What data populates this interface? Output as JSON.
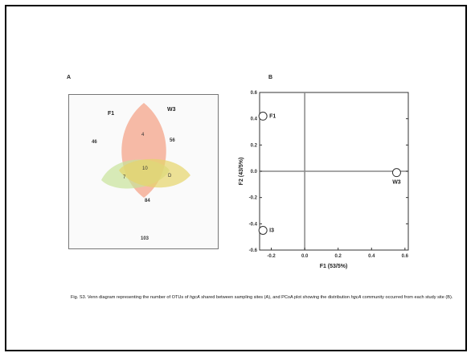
{
  "figure": {
    "panel_a_label": "A",
    "panel_b_label": "B",
    "caption": {
      "part1": "Fig. S3. Venn diagram representing the number of OTUs of ",
      "gene1": "hgcA",
      "part2": " shared between sampling sites (A), and PCoA plot showing the distribution ",
      "gene2": "hgcA",
      "part3": " community occurred from each study site (B)."
    }
  },
  "venn": {
    "set_labels": {
      "top_left": "F1",
      "top_right": "W3",
      "bottom": "I3"
    },
    "counts": {
      "left_outside": "46",
      "right_outside": "56",
      "top_only": "4",
      "left_only": "7",
      "center": "10",
      "right_only": "D",
      "below_center": "84",
      "bottom_outside": "103"
    },
    "colors": {
      "top_petal": "#f4a48a",
      "left_petal": "#c8e39a",
      "right_petal": "#e6d46a"
    }
  },
  "chart_data": {
    "type": "scatter",
    "xlabel": "F1 (53/5%)",
    "ylabel": "F2 (43/5%)",
    "xlim": [
      -0.27,
      0.62
    ],
    "ylim": [
      -0.6,
      0.6
    ],
    "x_ticks": [
      "-0.2",
      "0.0",
      "0.2",
      "0.4",
      "0.6"
    ],
    "y_ticks": [
      "-0.6",
      "-0.4",
      "-0.2",
      "0.0",
      "0.2",
      "0.4",
      "0.6"
    ],
    "points": [
      {
        "label": "F1",
        "x": -0.25,
        "y": 0.42
      },
      {
        "label": "W3",
        "x": 0.55,
        "y": -0.01
      },
      {
        "label": "I3",
        "x": -0.25,
        "y": -0.45
      }
    ],
    "axis_lines": {
      "x_at": 0.0,
      "y_at": 0.0
    },
    "grid": false,
    "legend": "none"
  }
}
